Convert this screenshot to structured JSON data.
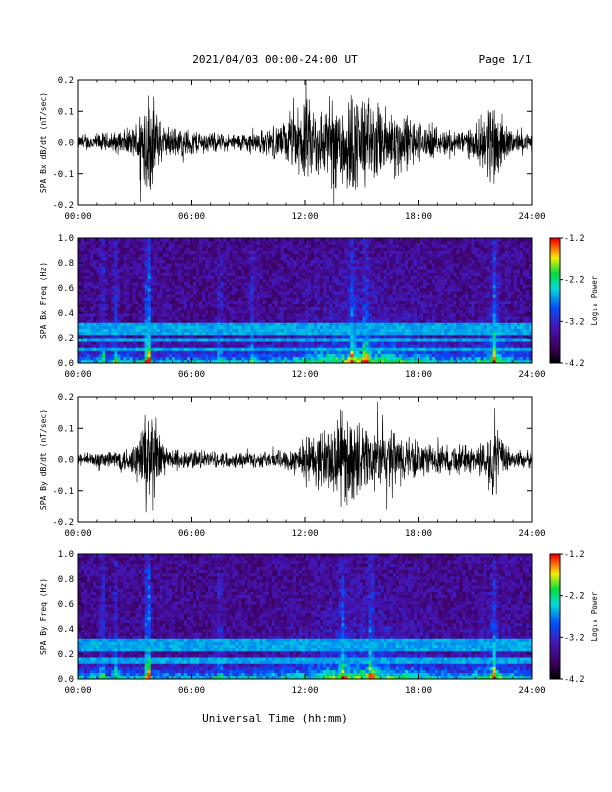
{
  "header": {
    "title": "2021/04/03  00:00-24:00 UT",
    "page": "Page 1/1"
  },
  "chart_data": [
    {
      "type": "line",
      "ylabel": "SPA Bx dB/dt (nT/sec)",
      "xlabel": "",
      "xlim": [
        0,
        24
      ],
      "ylim": [
        -0.2,
        0.2
      ],
      "xticks": [
        "00:00",
        "06:00",
        "12:00",
        "18:00",
        "24:00"
      ],
      "yticks": [
        "0.2",
        "0.1",
        "0.0",
        "-0.1",
        "-0.2"
      ],
      "series": [
        {
          "values": [
            [
              0.0,
              0.025
            ],
            [
              1.0,
              0.035
            ],
            [
              2.0,
              0.04
            ],
            [
              3.0,
              0.06
            ],
            [
              3.5,
              0.2
            ],
            [
              3.8,
              0.2
            ],
            [
              4.2,
              0.12
            ],
            [
              4.5,
              0.06
            ],
            [
              5.0,
              0.06
            ],
            [
              6.0,
              0.05
            ],
            [
              7.0,
              0.04
            ],
            [
              8.0,
              0.03
            ],
            [
              9.0,
              0.04
            ],
            [
              10.0,
              0.05
            ],
            [
              11.0,
              0.08
            ],
            [
              12.0,
              0.16
            ],
            [
              13.0,
              0.14
            ],
            [
              14.0,
              0.2
            ],
            [
              15.0,
              0.19
            ],
            [
              16.0,
              0.14
            ],
            [
              17.0,
              0.13
            ],
            [
              18.0,
              0.08
            ],
            [
              19.0,
              0.05
            ],
            [
              20.0,
              0.05
            ],
            [
              21.0,
              0.06
            ],
            [
              21.5,
              0.12
            ],
            [
              22.0,
              0.2
            ],
            [
              22.5,
              0.08
            ],
            [
              23.0,
              0.04
            ],
            [
              24.0,
              0.03
            ]
          ]
        }
      ]
    },
    {
      "type": "heatmap",
      "ylabel": "SPA Bx Freq (Hz)",
      "xlim": [
        0,
        24
      ],
      "ylim": [
        0.0,
        1.0
      ],
      "xticks": [
        "00:00",
        "06:00",
        "12:00",
        "18:00",
        "24:00"
      ],
      "yticks": [
        "1.0",
        "0.8",
        "0.6",
        "0.4",
        "0.2",
        "0.0"
      ],
      "colorbar": {
        "label": "Log₁₀ Power",
        "ticks": [
          "-1.2",
          "-2.2",
          "-3.2",
          "-4.2"
        ],
        "range": [
          -4.2,
          -1.2
        ]
      },
      "lines_hz": [
        0.12,
        0.18,
        0.25,
        0.3
      ],
      "bursts": [
        {
          "t": 1.3,
          "level": 0.45
        },
        {
          "t": 2.0,
          "level": 0.4
        },
        {
          "t": 3.7,
          "level": 1.0
        },
        {
          "t": 7.5,
          "level": 0.35
        },
        {
          "t": 9.2,
          "level": 0.35
        },
        {
          "t": 14.5,
          "level": 0.6
        },
        {
          "t": 15.2,
          "level": 0.55
        },
        {
          "t": 22.0,
          "level": 0.7
        }
      ]
    },
    {
      "type": "line",
      "ylabel": "SPA By dB/dt (nT/sec)",
      "xlim": [
        0,
        24
      ],
      "ylim": [
        -0.2,
        0.2
      ],
      "xticks": [
        "00:00",
        "06:00",
        "12:00",
        "18:00",
        "24:00"
      ],
      "yticks": [
        "0.2",
        "0.1",
        "0.0",
        "-0.1",
        "-0.2"
      ],
      "series": [
        {
          "values": [
            [
              0.0,
              0.02
            ],
            [
              1.0,
              0.03
            ],
            [
              2.0,
              0.04
            ],
            [
              3.0,
              0.06
            ],
            [
              3.5,
              0.2
            ],
            [
              3.8,
              0.2
            ],
            [
              4.2,
              0.14
            ],
            [
              4.5,
              0.06
            ],
            [
              5.0,
              0.04
            ],
            [
              6.0,
              0.04
            ],
            [
              7.0,
              0.03
            ],
            [
              8.0,
              0.03
            ],
            [
              9.0,
              0.03
            ],
            [
              10.0,
              0.03
            ],
            [
              11.0,
              0.04
            ],
            [
              12.0,
              0.08
            ],
            [
              13.0,
              0.12
            ],
            [
              14.0,
              0.18
            ],
            [
              15.0,
              0.13
            ],
            [
              16.0,
              0.12
            ],
            [
              17.0,
              0.1
            ],
            [
              18.0,
              0.07
            ],
            [
              19.0,
              0.05
            ],
            [
              20.0,
              0.06
            ],
            [
              21.0,
              0.05
            ],
            [
              21.5,
              0.08
            ],
            [
              22.0,
              0.15
            ],
            [
              22.5,
              0.06
            ],
            [
              23.0,
              0.04
            ],
            [
              24.0,
              0.03
            ]
          ]
        }
      ]
    },
    {
      "type": "heatmap",
      "ylabel": "SPA By Freq (Hz)",
      "xlim": [
        0,
        24
      ],
      "ylim": [
        0.0,
        1.0
      ],
      "xticks": [
        "00:00",
        "06:00",
        "12:00",
        "18:00",
        "24:00"
      ],
      "yticks": [
        "1.0",
        "0.8",
        "0.6",
        "0.4",
        "0.2",
        "0.0"
      ],
      "colorbar": {
        "label": "Log₁₀ Power",
        "ticks": [
          "-1.2",
          "-2.2",
          "-3.2",
          "-4.2"
        ],
        "range": [
          -4.2,
          -1.2
        ]
      },
      "lines_hz": [
        0.15,
        0.25,
        0.3
      ],
      "bursts": [
        {
          "t": 1.3,
          "level": 0.45
        },
        {
          "t": 2.0,
          "level": 0.4
        },
        {
          "t": 3.7,
          "level": 1.0
        },
        {
          "t": 7.5,
          "level": 0.35
        },
        {
          "t": 14.0,
          "level": 0.55
        },
        {
          "t": 15.5,
          "level": 0.55
        },
        {
          "t": 22.0,
          "level": 0.6
        }
      ]
    }
  ],
  "footer": {
    "xlabel": "Universal Time (hh:mm)"
  }
}
